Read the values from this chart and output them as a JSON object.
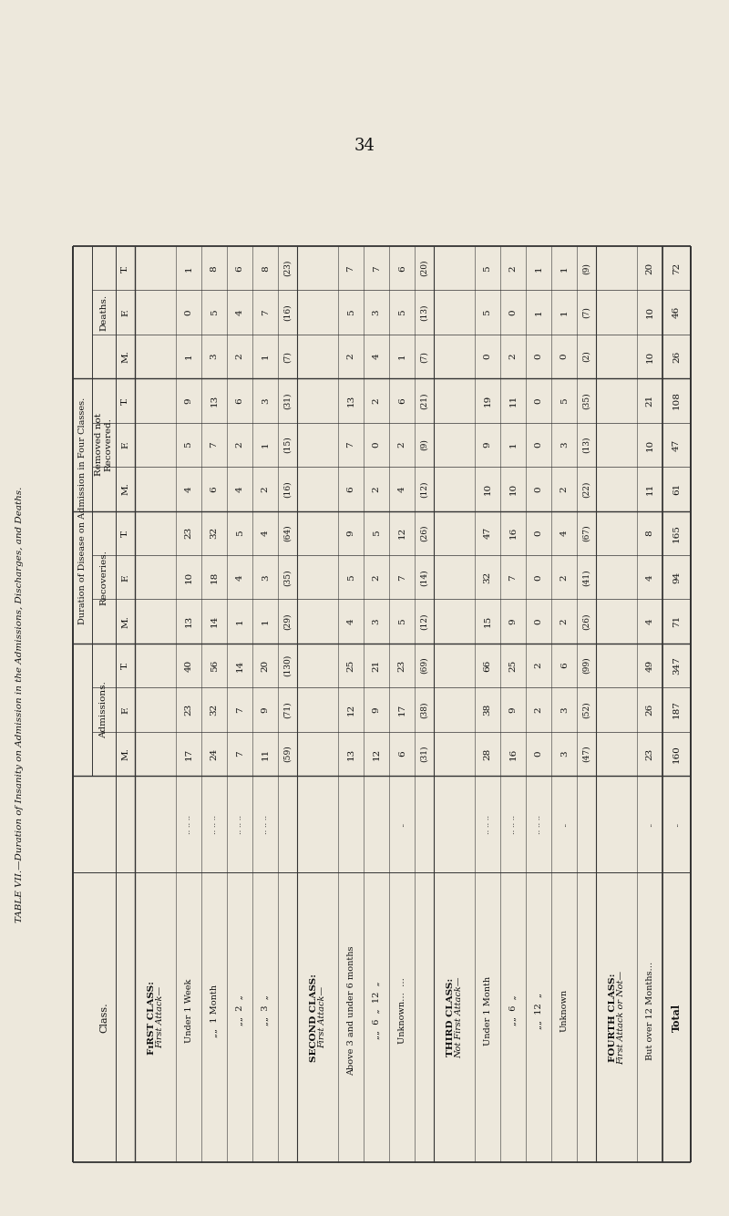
{
  "page_number": "34",
  "table_title": "TABLE VII.—Duration of Insanity on Admission in the Admissions, Discharges, and Deaths.",
  "col_header_line1": "Duration of Disease on Admission in Four Classes.",
  "bg_color": "#ede8dc",
  "line_color": "#333333",
  "text_color": "#111111",
  "group_headers": [
    "Admissions.",
    "Recoveries.",
    "Removed not\nRecovered.",
    "Deaths."
  ],
  "sub_headers": [
    "M.",
    "F.",
    "T."
  ],
  "row_defs": [
    {
      "type": "class",
      "label": "FɪRST CLASS:",
      "italic_sub": "First Attack—"
    },
    {
      "type": "data",
      "label": "Under 1 Week",
      "dots": ".. .. .."
    },
    {
      "type": "data",
      "label": "„„  1 Month",
      "dots": ".. .. .."
    },
    {
      "type": "data",
      "label": "„„  2  „",
      "dots": ".. .. .."
    },
    {
      "type": "data",
      "label": "„„  3  „",
      "dots": ".. .. .."
    },
    {
      "type": "subtotal",
      "label": "",
      "dots": ""
    },
    {
      "type": "class",
      "label": "SECOND CLASS:",
      "italic_sub": "First Attack—"
    },
    {
      "type": "data",
      "label": "Above 3 and under 6 months",
      "dots": ""
    },
    {
      "type": "data",
      "label": "„„  6  „  12  „",
      "dots": ""
    },
    {
      "type": "data",
      "label": "Unknown…  …",
      "dots": ".."
    },
    {
      "type": "subtotal",
      "label": "",
      "dots": ""
    },
    {
      "type": "class",
      "label": "THIRD CLASS:",
      "italic_sub": "Not First Attack—"
    },
    {
      "type": "data",
      "label": "Under 1 Month",
      "dots": ".. .. .."
    },
    {
      "type": "data",
      "label": "„„  6  „",
      "dots": ".. .. .."
    },
    {
      "type": "data",
      "label": "„„  12  „",
      "dots": ".. .. .."
    },
    {
      "type": "data",
      "label": "Unknown",
      "dots": ".."
    },
    {
      "type": "subtotal",
      "label": "",
      "dots": ""
    },
    {
      "type": "class",
      "label": "FOURTH CLASS:",
      "italic_sub": "First Attack or Not—"
    },
    {
      "type": "data",
      "label": "But over 12 Months…",
      "dots": ".."
    },
    {
      "type": "total",
      "label": "TOTAL",
      "dots": ".."
    }
  ],
  "row_values": [
    null,
    [
      17,
      23,
      40,
      13,
      10,
      23,
      4,
      5,
      9,
      1,
      0,
      1
    ],
    [
      24,
      32,
      56,
      14,
      18,
      32,
      6,
      7,
      13,
      3,
      5,
      8
    ],
    [
      7,
      7,
      14,
      1,
      4,
      5,
      4,
      2,
      6,
      2,
      4,
      6
    ],
    [
      11,
      9,
      20,
      1,
      3,
      4,
      2,
      1,
      3,
      1,
      7,
      8
    ],
    [
      "(59)",
      "(71)",
      "(130)",
      "(29)",
      "(35)",
      "(64)",
      "(16)",
      "(15)",
      "(31)",
      "(7)",
      "(16)",
      "(23)"
    ],
    null,
    [
      13,
      12,
      25,
      4,
      5,
      9,
      6,
      7,
      13,
      2,
      5,
      7
    ],
    [
      12,
      9,
      21,
      3,
      2,
      5,
      2,
      0,
      2,
      4,
      3,
      7
    ],
    [
      6,
      17,
      23,
      5,
      7,
      12,
      4,
      2,
      6,
      1,
      5,
      6
    ],
    [
      "(31)",
      "(38)",
      "(69)",
      "(12)",
      "(14)",
      "(26)",
      "(12)",
      "(9)",
      "(21)",
      "(7)",
      "(13)",
      "(20)"
    ],
    null,
    [
      28,
      38,
      66,
      15,
      32,
      47,
      10,
      9,
      19,
      0,
      5,
      5
    ],
    [
      16,
      9,
      25,
      9,
      7,
      16,
      10,
      1,
      11,
      2,
      0,
      2
    ],
    [
      0,
      2,
      2,
      0,
      0,
      0,
      0,
      0,
      0,
      0,
      1,
      1
    ],
    [
      3,
      3,
      6,
      2,
      2,
      4,
      2,
      3,
      5,
      0,
      1,
      1
    ],
    [
      "(47)",
      "(52)",
      "(99)",
      "(26)",
      "(41)",
      "(67)",
      "(22)",
      "(13)",
      "(35)",
      "(2)",
      "(7)",
      "(9)"
    ],
    null,
    [
      23,
      26,
      49,
      4,
      4,
      8,
      11,
      10,
      21,
      10,
      10,
      20
    ],
    [
      160,
      187,
      347,
      71,
      94,
      165,
      61,
      47,
      108,
      26,
      46,
      72
    ]
  ]
}
